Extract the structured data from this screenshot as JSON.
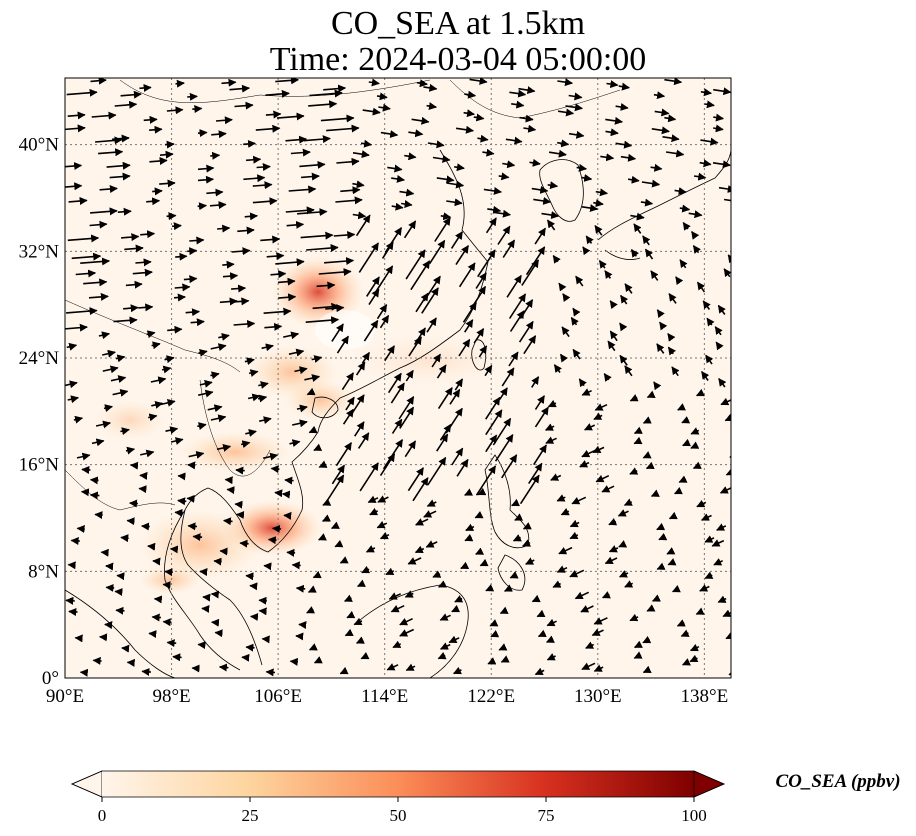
{
  "title": {
    "line1": "CO_SEA at 1.5km",
    "line2": "Time: 2024-03-04 05:00:00"
  },
  "map": {
    "lon_range": [
      90,
      140
    ],
    "lat_range": [
      0,
      45
    ],
    "lon_ticks": [
      "90°E",
      "98°E",
      "106°E",
      "114°E",
      "122°E",
      "130°E",
      "138°E"
    ],
    "lat_ticks": [
      "0°",
      "8°N",
      "16°N",
      "24°N",
      "32°N",
      "40°N"
    ],
    "background_color": "#fff5eb",
    "coastline_color": "#000000",
    "gridline_style": "dotted grey",
    "wind_arrows": "black quiver vectors, predominantly westerly to south-westerly over continent, north-easterly over South China Sea"
  },
  "colorbar": {
    "label": "CO_SEA (ppbv)",
    "tick_labels": [
      "0",
      "25",
      "50",
      "75",
      "100"
    ],
    "colormap": "OrRd",
    "extend": "both",
    "colors": [
      "#fff5eb",
      "#fdd49e",
      "#fc8d59",
      "#d7301f",
      "#7f0000"
    ]
  }
}
